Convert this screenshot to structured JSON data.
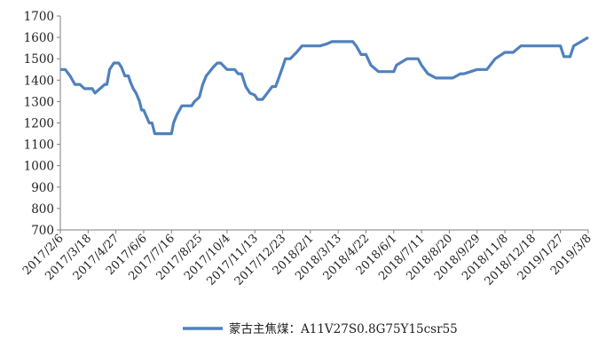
{
  "chart_data": {
    "type": "line",
    "title": "",
    "xlabel": "",
    "ylabel": "",
    "ylim": [
      700,
      1700
    ],
    "yticks": [
      700,
      800,
      900,
      1000,
      1100,
      1200,
      1300,
      1400,
      1500,
      1600,
      1700
    ],
    "grid": false,
    "legend_position": "bottom",
    "xlim": [
      "2017-02-06",
      "2019-03-08"
    ],
    "xtick_labels": [
      "2017/2/6",
      "2017/3/18",
      "2017/4/27",
      "2017/6/6",
      "2017/7/16",
      "2017/8/25",
      "2017/10/4",
      "2017/11/13",
      "2017/12/23",
      "2018/2/1",
      "2018/3/13",
      "2018/4/22",
      "2018/6/1",
      "2018/7/11",
      "2018/8/20",
      "2018/9/29",
      "2018/11/8",
      "2018/12/18",
      "2019/1/27",
      "2019/3/8"
    ],
    "series": [
      {
        "name": "蒙古主焦煤：A11V27S0.8G75Y15csr55",
        "color": "#4f81bd",
        "x": [
          "2017-02-06",
          "2017-02-13",
          "2017-02-20",
          "2017-02-27",
          "2017-03-06",
          "2017-03-13",
          "2017-03-18",
          "2017-03-24",
          "2017-03-28",
          "2017-04-04",
          "2017-04-11",
          "2017-04-14",
          "2017-04-18",
          "2017-04-24",
          "2017-05-01",
          "2017-05-05",
          "2017-05-10",
          "2017-05-15",
          "2017-05-18",
          "2017-05-22",
          "2017-05-26",
          "2017-05-31",
          "2017-06-03",
          "2017-06-06",
          "2017-06-10",
          "2017-06-14",
          "2017-06-18",
          "2017-06-22",
          "2017-06-30",
          "2017-07-07",
          "2017-07-16",
          "2017-07-19",
          "2017-07-24",
          "2017-07-31",
          "2017-08-07",
          "2017-08-14",
          "2017-08-18",
          "2017-08-25",
          "2017-08-30",
          "2017-09-04",
          "2017-09-09",
          "2017-09-14",
          "2017-09-20",
          "2017-09-25",
          "2017-10-04",
          "2017-10-10",
          "2017-10-15",
          "2017-10-20",
          "2017-10-25",
          "2017-10-31",
          "2017-11-06",
          "2017-11-13",
          "2017-11-17",
          "2017-11-24",
          "2017-12-01",
          "2017-12-08",
          "2017-12-13",
          "2017-12-23",
          "2017-12-27",
          "2018-01-03",
          "2018-01-12",
          "2018-01-20",
          "2018-02-01",
          "2018-02-15",
          "2018-02-25",
          "2018-03-04",
          "2018-03-13",
          "2018-03-25",
          "2018-04-03",
          "2018-04-08",
          "2018-04-15",
          "2018-04-22",
          "2018-04-29",
          "2018-05-10",
          "2018-05-20",
          "2018-06-01",
          "2018-06-05",
          "2018-06-20",
          "2018-07-01",
          "2018-07-06",
          "2018-07-11",
          "2018-07-20",
          "2018-08-01",
          "2018-08-20",
          "2018-08-25",
          "2018-09-05",
          "2018-09-10",
          "2018-09-29",
          "2018-10-04",
          "2018-10-08",
          "2018-10-13",
          "2018-10-25",
          "2018-11-08",
          "2018-11-12",
          "2018-11-20",
          "2018-12-01",
          "2018-12-18",
          "2019-01-10",
          "2019-01-15",
          "2019-01-27",
          "2019-02-01",
          "2019-02-10",
          "2019-02-15",
          "2019-03-08"
        ],
        "y": [
          1450,
          1450,
          1420,
          1380,
          1380,
          1360,
          1360,
          1360,
          1340,
          1360,
          1380,
          1380,
          1450,
          1480,
          1480,
          1460,
          1420,
          1420,
          1390,
          1360,
          1340,
          1300,
          1260,
          1260,
          1230,
          1200,
          1200,
          1150,
          1150,
          1150,
          1150,
          1200,
          1240,
          1280,
          1280,
          1280,
          1300,
          1320,
          1380,
          1420,
          1440,
          1460,
          1480,
          1480,
          1450,
          1450,
          1450,
          1430,
          1430,
          1370,
          1340,
          1330,
          1310,
          1310,
          1340,
          1370,
          1370,
          1460,
          1500,
          1500,
          1530,
          1560,
          1560,
          1560,
          1570,
          1580,
          1580,
          1580,
          1580,
          1560,
          1520,
          1520,
          1470,
          1440,
          1440,
          1440,
          1470,
          1500,
          1500,
          1500,
          1470,
          1430,
          1410,
          1410,
          1410,
          1430,
          1430,
          1450,
          1450,
          1450,
          1450,
          1500,
          1530,
          1530,
          1530,
          1560,
          1560,
          1560,
          1560,
          1560,
          1510,
          1510,
          1560,
          1600
        ]
      }
    ]
  }
}
